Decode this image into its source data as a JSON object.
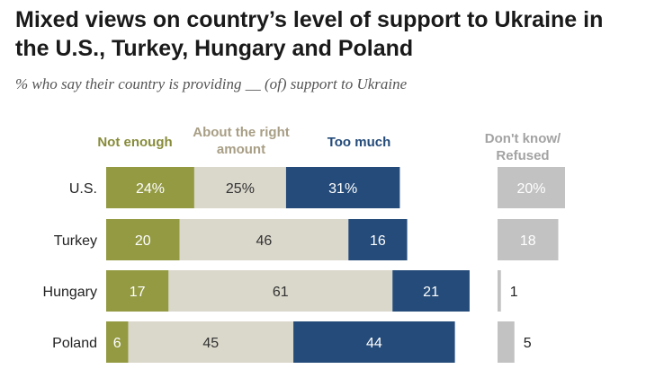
{
  "title": "Mixed views on country’s level of support to Ukraine in the U.S., Turkey, Hungary and Poland",
  "subtitle": "% who say their country is providing __ (of) support to Ukraine",
  "colors": {
    "not_enough": "#939a42",
    "about_right": "#dad7cb",
    "too_much": "#244b79",
    "dont_know": "#c2c2c2",
    "head_not_enough": "#878c3a",
    "head_about_right": "#a89e85",
    "head_too_much": "#244b79",
    "head_dont_know": "#a3a3a3"
  },
  "chart_data": {
    "type": "bar",
    "stacked": true,
    "orientation": "horizontal",
    "title": "Mixed views on country’s level of support to Ukraine in the U.S., Turkey, Hungary and Poland",
    "subtitle": "% who say their country is providing __ (of) support to Ukraine",
    "categories": [
      "U.S.",
      "Turkey",
      "Hungary",
      "Poland"
    ],
    "series": [
      {
        "name": "Not enough",
        "values": [
          24,
          20,
          17,
          6
        ],
        "labels": [
          "24%",
          "20",
          "17",
          "6"
        ]
      },
      {
        "name": "About the right amount",
        "values": [
          25,
          46,
          61,
          45
        ],
        "labels": [
          "25%",
          "46",
          "61",
          "45"
        ]
      },
      {
        "name": "Too much",
        "values": [
          31,
          16,
          21,
          44
        ],
        "labels": [
          "31%",
          "16",
          "21",
          "44"
        ]
      }
    ],
    "side_series": {
      "name": "Don't know/ Refused",
      "values": [
        20,
        18,
        1,
        5
      ],
      "labels": [
        "20%",
        "18",
        "1",
        "5"
      ]
    },
    "column_headers": {
      "not_enough": "Not enough",
      "about_right": [
        "About the right",
        "amount"
      ],
      "too_much": "Too much",
      "dont_know": [
        "Don't know/",
        "Refused"
      ]
    }
  }
}
